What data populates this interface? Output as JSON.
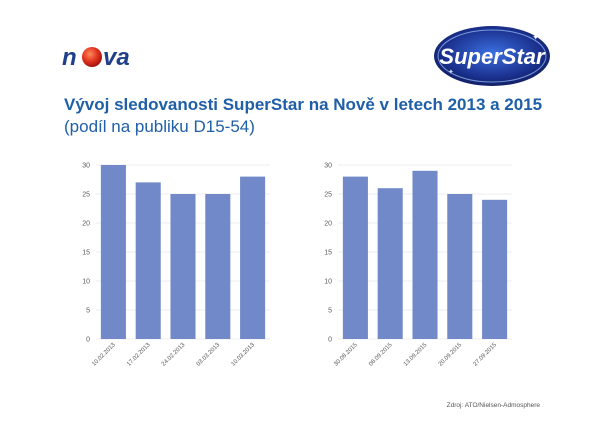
{
  "logos": {
    "nova": "nova",
    "superstar": "SuperStar"
  },
  "title": {
    "main": "Vývoj sledovanosti SuperStar na Nově v letech 2013 a 2015",
    "sub": "(podíl na publiku D15-54)"
  },
  "source": "Zdroj: ATO/Nielsen-Admosphere",
  "colors": {
    "bar": "#7189c8",
    "title": "#1f5fa8",
    "nova_red": "#d8261c",
    "nova_blue": "#1f3f8a",
    "superstar_bg": "#1a2f8c"
  },
  "chart_data": [
    {
      "type": "bar",
      "categories": [
        "10.02.2013",
        "17.02.2013",
        "24.02.2013",
        "03.03.2013",
        "10.03.2013"
      ],
      "values": [
        30,
        27,
        25,
        25,
        28
      ],
      "ylim": [
        0,
        30
      ],
      "yticks": [
        0,
        5,
        10,
        15,
        20,
        25,
        30
      ],
      "grid": true
    },
    {
      "type": "bar",
      "categories": [
        "30.08.2015",
        "06.09.2015",
        "13.09.2015",
        "20.09.2015",
        "27.09.2015"
      ],
      "values": [
        28,
        26,
        29,
        25,
        24
      ],
      "ylim": [
        0,
        30
      ],
      "yticks": [
        0,
        5,
        10,
        15,
        20,
        25,
        30
      ],
      "grid": true
    }
  ]
}
